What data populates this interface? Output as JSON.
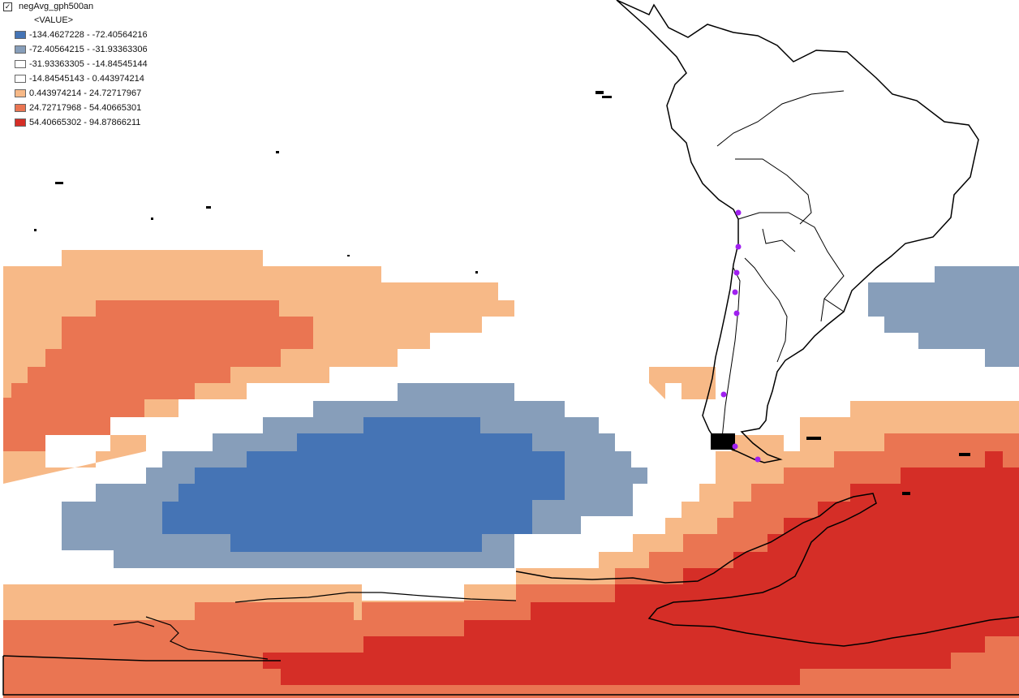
{
  "layer": {
    "name": "negAvg_gph500an",
    "checked": "✓",
    "field": "<VALUE>"
  },
  "legend": [
    {
      "label": "-134.4627228 - -72.40564216",
      "color": "#4574b5"
    },
    {
      "label": "-72.40564215 - -31.93363306",
      "color": "#879eba"
    },
    {
      "label": "-31.93363305 - -14.84545144",
      "color": "#ffffff"
    },
    {
      "label": "-14.84545143 - 0.443974214",
      "color": "#ffffff"
    },
    {
      "label": "0.443974214 - 24.72717967",
      "color": "#f7b987"
    },
    {
      "label": "24.72717968 - 54.40665301",
      "color": "#ea7552"
    },
    {
      "label": "54.40665302 - 94.87866211",
      "color": "#d52e27"
    }
  ],
  "map": {
    "stations": "magenta points along Chile",
    "station_color": "#a020f0",
    "outline_color": "#000000"
  }
}
